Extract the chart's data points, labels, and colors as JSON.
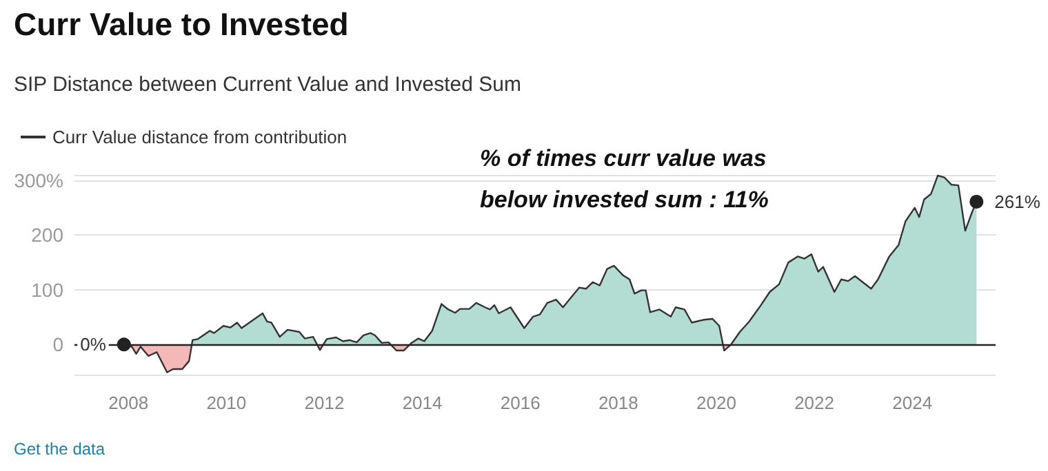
{
  "chart_data": {
    "type": "area",
    "title": "Curr Value to Invested",
    "subtitle": "SIP Distance between Current Value and Invested Sum",
    "x": [
      2007.91,
      2008.07,
      2008.16,
      2008.25,
      2008.41,
      2008.58,
      2008.79,
      2008.91,
      2009.1,
      2009.24,
      2009.31,
      2009.42,
      2009.66,
      2009.75,
      2009.94,
      2010.08,
      2010.22,
      2010.31,
      2010.5,
      2010.74,
      2010.83,
      2010.92,
      2011.09,
      2011.25,
      2011.49,
      2011.6,
      2011.77,
      2011.91,
      2012.05,
      2012.24,
      2012.38,
      2012.52,
      2012.66,
      2012.8,
      2012.94,
      2013.03,
      2013.17,
      2013.31,
      2013.47,
      2013.62,
      2013.78,
      2013.92,
      2014.04,
      2014.2,
      2014.39,
      2014.53,
      2014.67,
      2014.77,
      2014.96,
      2015.1,
      2015.28,
      2015.38,
      2015.47,
      2015.56,
      2015.8,
      2016.08,
      2016.26,
      2016.4,
      2016.55,
      2016.73,
      2016.87,
      2017.2,
      2017.34,
      2017.48,
      2017.62,
      2017.77,
      2017.91,
      2018.09,
      2018.23,
      2018.33,
      2018.47,
      2018.56,
      2018.65,
      2018.84,
      2019.07,
      2019.17,
      2019.35,
      2019.5,
      2019.73,
      2019.92,
      2020.06,
      2020.16,
      2020.3,
      2020.48,
      2020.67,
      2020.91,
      2021.09,
      2021.28,
      2021.47,
      2021.66,
      2021.8,
      2021.94,
      2022.08,
      2022.18,
      2022.41,
      2022.55,
      2022.69,
      2022.83,
      2023.16,
      2023.3,
      2023.53,
      2023.72,
      2023.86,
      2024.05,
      2024.14,
      2024.24,
      2024.38,
      2024.52,
      2024.66,
      2024.8,
      2024.94,
      2025.08,
      2025.22,
      2025.31
    ],
    "series": [
      {
        "name": "Curr Value distance from contribution",
        "color": "#333333",
        "colors": [
          "#b3ddd3",
          "#f5b8b8",
          "#f5b8b8",
          "#f5b8b8",
          "#f5b8b8",
          "#f5b8b8",
          "#f5b8b8",
          "#f5b8b8",
          "#f5b8b8",
          "#f5b8b8",
          "#b3ddd3",
          "#b3ddd3",
          "#b3ddd3",
          "#b3ddd3",
          "#b3ddd3",
          "#b3ddd3",
          "#b3ddd3",
          "#b3ddd3",
          "#b3ddd3",
          "#b3ddd3",
          "#b3ddd3",
          "#b3ddd3",
          "#b3ddd3",
          "#b3ddd3",
          "#b3ddd3",
          "#b3ddd3",
          "#b3ddd3",
          "#f5b8b8",
          "#b3ddd3",
          "#b3ddd3",
          "#b3ddd3",
          "#b3ddd3",
          "#b3ddd3",
          "#b3ddd3",
          "#b3ddd3",
          "#b3ddd3",
          "#b3ddd3",
          "#b3ddd3",
          "#f5b8b8",
          "#f5b8b8",
          "#b3ddd3",
          "#b3ddd3",
          "#b3ddd3",
          "#b3ddd3",
          "#b3ddd3",
          "#b3ddd3",
          "#b3ddd3",
          "#b3ddd3",
          "#b3ddd3",
          "#b3ddd3",
          "#b3ddd3",
          "#b3ddd3",
          "#b3ddd3",
          "#b3ddd3",
          "#b3ddd3",
          "#b3ddd3",
          "#b3ddd3",
          "#b3ddd3",
          "#b3ddd3",
          "#b3ddd3",
          "#b3ddd3",
          "#b3ddd3",
          "#b3ddd3",
          "#b3ddd3",
          "#b3ddd3",
          "#b3ddd3",
          "#b3ddd3",
          "#b3ddd3",
          "#b3ddd3",
          "#b3ddd3",
          "#b3ddd3",
          "#b3ddd3",
          "#b3ddd3",
          "#b3ddd3",
          "#b3ddd3",
          "#b3ddd3",
          "#b3ddd3",
          "#b3ddd3",
          "#b3ddd3",
          "#b3ddd3",
          "#b3ddd3",
          "#f5b8b8",
          "#b3ddd3",
          "#b3ddd3",
          "#b3ddd3",
          "#b3ddd3",
          "#b3ddd3",
          "#b3ddd3",
          "#b3ddd3",
          "#b3ddd3",
          "#b3ddd3",
          "#b3ddd3",
          "#b3ddd3",
          "#b3ddd3",
          "#b3ddd3",
          "#b3ddd3",
          "#b3ddd3",
          "#b3ddd3",
          "#b3ddd3",
          "#b3ddd3",
          "#b3ddd3",
          "#b3ddd3",
          "#b3ddd3",
          "#b3ddd3",
          "#b3ddd3",
          "#b3ddd3",
          "#b3ddd3",
          "#b3ddd3",
          "#b3ddd3",
          "#b3ddd3",
          "#b3ddd3",
          "#b3ddd3",
          "#b3ddd3",
          "#b3ddd3"
        ],
        "values": [
          0,
          -4,
          -17,
          -4,
          -21,
          -14,
          -51,
          -45,
          -45,
          -30,
          8,
          10,
          25,
          21,
          34,
          31,
          40,
          30,
          42,
          57,
          42,
          40,
          14,
          27,
          23,
          11,
          14,
          -10,
          10,
          13,
          6,
          8,
          4,
          17,
          21,
          17,
          3,
          4,
          -11,
          -11,
          3,
          11,
          6,
          25,
          74,
          64,
          58,
          65,
          65,
          76,
          68,
          64,
          72,
          57,
          68,
          30,
          51,
          55,
          76,
          82,
          68,
          104,
          102,
          114,
          108,
          138,
          144,
          127,
          119,
          93,
          99,
          99,
          59,
          64,
          51,
          68,
          64,
          40,
          45,
          47,
          34,
          -11,
          0,
          23,
          42,
          72,
          96,
          110,
          150,
          161,
          157,
          165,
          133,
          142,
          96,
          119,
          116,
          125,
          102,
          119,
          161,
          182,
          225,
          250,
          233,
          265,
          275,
          309,
          305,
          292,
          291,
          208,
          242,
          261
        ]
      }
    ],
    "xlim": [
      2006.9,
      2025.7
    ],
    "xticks": [
      2008,
      2010,
      2012,
      2014,
      2016,
      2018,
      2020,
      2022,
      2024
    ],
    "ylim": [
      -55,
      310
    ],
    "yticks": [
      0,
      100,
      200,
      {
        "value": 300,
        "label": "300%"
      }
    ],
    "grid": "y",
    "legend": "top left",
    "annotations": [
      {
        "text": "0%",
        "x": 2007.91,
        "y": 0
      },
      {
        "text": "261%",
        "x": 2025.31,
        "y": 261
      },
      "% of times curr value was below invested sum : 11%",
      "Get the data"
    ]
  }
}
